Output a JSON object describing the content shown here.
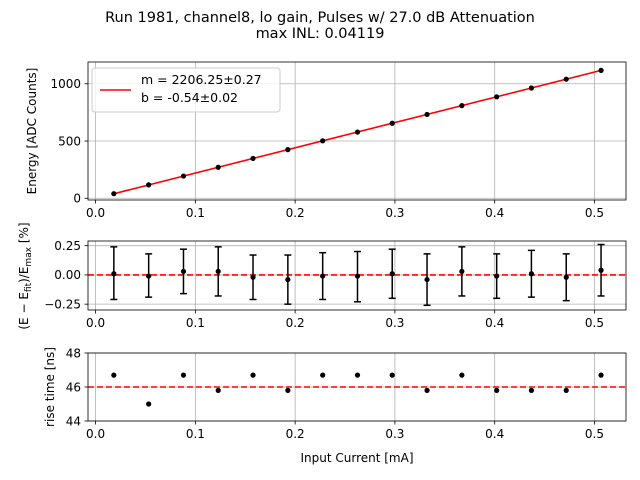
{
  "figure": {
    "title_line1": "Run 1981, channel8, lo gain, Pulses w/ 27.0 dB Attenuation",
    "title_line2": "max INL: 0.04119"
  },
  "chart_data": [
    {
      "type": "scatter",
      "name": "energy",
      "ylabel": "Energy [ADC Counts]",
      "xlim": [
        -0.0076,
        0.5316
      ],
      "ylim": [
        -15,
        1190
      ],
      "xticks": [
        0.0,
        0.1,
        0.2,
        0.3,
        0.4,
        0.5
      ],
      "xtick_labels": [
        "0.0",
        "0.1",
        "0.2",
        "0.3",
        "0.4",
        "0.5"
      ],
      "yticks": [
        0,
        500,
        1000
      ],
      "ytick_labels": [
        "0",
        "500",
        "1000"
      ],
      "grid": true,
      "series": [
        {
          "name": "data",
          "x": [
            0.0183,
            0.0532,
            0.0881,
            0.1229,
            0.1578,
            0.1927,
            0.2276,
            0.2625,
            0.2973,
            0.3322,
            0.3671,
            0.402,
            0.4368,
            0.4717,
            0.5066
          ],
          "y": [
            40,
            117,
            194,
            271,
            348,
            425,
            502,
            578,
            655,
            732,
            809,
            886,
            963,
            1040,
            1117
          ]
        }
      ],
      "fit": {
        "color": "#ff0000",
        "m": 2206.25,
        "b": -0.54
      },
      "legend": {
        "position": "upper-left",
        "line1": "m = 2206.25±0.27",
        "line2": "b = -0.54±0.02"
      }
    },
    {
      "type": "scatter",
      "name": "inl",
      "ylabel": "(E − E_fit)/E_max [%]",
      "ylabel_main": "(E − E",
      "ylabel_sub1": "fit",
      "ylabel_mid": ")/E",
      "ylabel_sub2": "max",
      "ylabel_end": " [%]",
      "xlim": [
        -0.0076,
        0.5316
      ],
      "ylim": [
        -0.3,
        0.29
      ],
      "xticks": [
        0.0,
        0.1,
        0.2,
        0.3,
        0.4,
        0.5
      ],
      "xtick_labels": [
        "0.0",
        "0.1",
        "0.2",
        "0.3",
        "0.4",
        "0.5"
      ],
      "yticks": [
        -0.25,
        0.0,
        0.25
      ],
      "ytick_labels": [
        "−0.25",
        "0.00",
        "0.25"
      ],
      "grid": true,
      "reference_line": {
        "y": 0.0,
        "color": "#ff0000",
        "style": "dashed"
      },
      "series": [
        {
          "name": "residual",
          "x": [
            0.0183,
            0.0532,
            0.0881,
            0.1229,
            0.1578,
            0.1927,
            0.2276,
            0.2625,
            0.2973,
            0.3322,
            0.3671,
            0.402,
            0.4368,
            0.4717,
            0.5066
          ],
          "y": [
            0.01,
            -0.01,
            0.03,
            0.03,
            -0.02,
            -0.04,
            -0.01,
            -0.01,
            0.01,
            -0.04,
            0.03,
            -0.01,
            0.01,
            -0.02,
            0.04
          ],
          "yerr_upper": [
            0.24,
            0.18,
            0.22,
            0.24,
            0.17,
            0.17,
            0.19,
            0.2,
            0.22,
            0.18,
            0.24,
            0.18,
            0.21,
            0.18,
            0.26
          ],
          "yerr_lower": [
            -0.21,
            -0.19,
            -0.16,
            -0.18,
            -0.21,
            -0.25,
            -0.21,
            -0.23,
            -0.2,
            -0.26,
            -0.18,
            -0.2,
            -0.19,
            -0.22,
            -0.18
          ]
        }
      ]
    },
    {
      "type": "scatter",
      "name": "risetime",
      "ylabel": "rise time [ns]",
      "xlabel": "Input Current [mA]",
      "xlim": [
        -0.0076,
        0.5316
      ],
      "ylim": [
        44,
        48
      ],
      "xticks": [
        0.0,
        0.1,
        0.2,
        0.3,
        0.4,
        0.5
      ],
      "xtick_labels": [
        "0.0",
        "0.1",
        "0.2",
        "0.3",
        "0.4",
        "0.5"
      ],
      "yticks": [
        44,
        46,
        48
      ],
      "ytick_labels": [
        "44",
        "46",
        "48"
      ],
      "grid": true,
      "reference_line": {
        "y": 46.0,
        "color": "#ff0000",
        "style": "dashed"
      },
      "series": [
        {
          "name": "rise_time",
          "x": [
            0.0183,
            0.0532,
            0.0881,
            0.1229,
            0.1578,
            0.1927,
            0.2276,
            0.2625,
            0.2973,
            0.3322,
            0.3671,
            0.402,
            0.4368,
            0.4717,
            0.5066
          ],
          "y": [
            46.7,
            45.0,
            46.7,
            45.8,
            46.7,
            45.8,
            46.7,
            46.7,
            46.7,
            45.8,
            46.7,
            45.8,
            45.8,
            45.8,
            46.7
          ]
        }
      ]
    }
  ]
}
